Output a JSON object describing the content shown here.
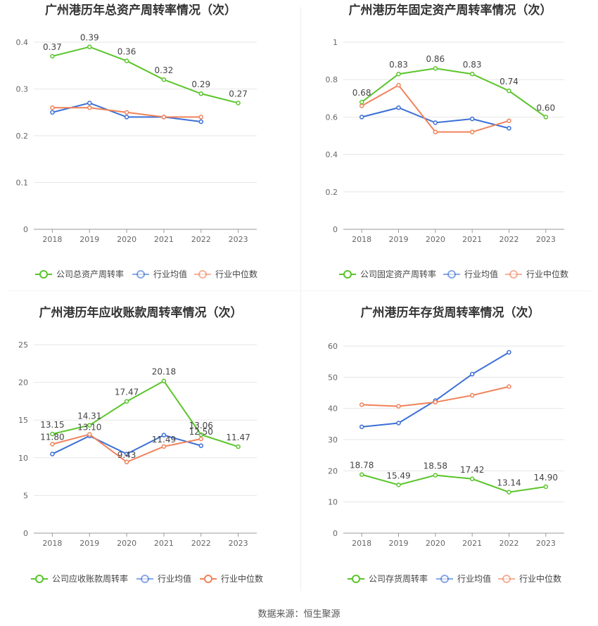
{
  "footer": {
    "source": "数据来源：恒生聚源"
  },
  "colors": {
    "company": "#5ac52a",
    "avg": "#3b6fd6",
    "median": "#f0825a",
    "grid": "#e6e6e6",
    "axis": "#999999"
  },
  "chart_data": [
    {
      "type": "line",
      "title": "广州港历年总资产周转率情况（次）",
      "categories": [
        "2018",
        "2019",
        "2020",
        "2021",
        "2022",
        "2023"
      ],
      "ylim": [
        0,
        0.4
      ],
      "yticks": [
        "0",
        "0.1",
        "0.2",
        "0.3",
        "0.4"
      ],
      "yticks_values": [
        0,
        0.1,
        0.2,
        0.3,
        0.4
      ],
      "series": [
        {
          "name": "公司总资产周转率",
          "values": [
            0.37,
            0.39,
            0.36,
            0.32,
            0.29,
            0.27
          ],
          "labels": [
            "0.37",
            "0.39",
            "0.36",
            "0.32",
            "0.29",
            "0.27"
          ]
        },
        {
          "name": "行业均值",
          "values": [
            0.25,
            0.27,
            0.24,
            0.24,
            0.23,
            null
          ]
        },
        {
          "name": "行业中位数",
          "values": [
            0.26,
            0.26,
            0.25,
            0.24,
            0.24,
            null
          ]
        }
      ]
    },
    {
      "type": "line",
      "title": "广州港历年固定资产周转率情况（次）",
      "categories": [
        "2018",
        "2019",
        "2020",
        "2021",
        "2022",
        "2023"
      ],
      "ylim": [
        0,
        1
      ],
      "yticks": [
        "0",
        "0.2",
        "0.4",
        "0.6",
        "0.8",
        "1"
      ],
      "yticks_values": [
        0,
        0.2,
        0.4,
        0.6,
        0.8,
        1
      ],
      "series": [
        {
          "name": "公司固定资产周转率",
          "values": [
            0.68,
            0.83,
            0.86,
            0.83,
            0.74,
            0.6
          ],
          "labels": [
            "0.68",
            "0.83",
            "0.86",
            "0.83",
            "0.74",
            "0.60"
          ]
        },
        {
          "name": "行业均值",
          "values": [
            0.6,
            0.65,
            0.57,
            0.59,
            0.54,
            null
          ]
        },
        {
          "name": "行业中位数",
          "values": [
            0.66,
            0.77,
            0.52,
            0.52,
            0.58,
            null
          ]
        }
      ]
    },
    {
      "type": "line",
      "title": "广州港历年应收账款周转率情况（次）",
      "categories": [
        "2018",
        "2019",
        "2020",
        "2021",
        "2022",
        "2023"
      ],
      "ylim": [
        0,
        25
      ],
      "yticks": [
        "0",
        "5",
        "10",
        "15",
        "20",
        "25"
      ],
      "yticks_values": [
        0,
        5,
        10,
        15,
        20,
        25
      ],
      "series": [
        {
          "name": "公司应收账款周转率",
          "values": [
            13.15,
            14.31,
            17.47,
            20.18,
            13.06,
            11.47
          ],
          "labels": [
            "13.15",
            "14.31",
            "17.47",
            "20.18",
            "13.06",
            "11.47"
          ]
        },
        {
          "name": "行业均值",
          "values": [
            10.5,
            12.9,
            10.5,
            13.0,
            11.6,
            null
          ]
        },
        {
          "name": "行业中位数",
          "values": [
            11.8,
            13.1,
            9.43,
            11.49,
            12.5,
            null
          ],
          "labels": [
            "11.80",
            "13.10",
            "9.43",
            "11.49",
            "12.50",
            ""
          ]
        }
      ]
    },
    {
      "type": "line",
      "title": "广州港历年存货周转率情况（次）",
      "categories": [
        "2018",
        "2019",
        "2020",
        "2021",
        "2022",
        "2023"
      ],
      "ylim": [
        0,
        60
      ],
      "yticks": [
        "0",
        "10",
        "20",
        "30",
        "40",
        "50",
        "60"
      ],
      "yticks_values": [
        0,
        10,
        20,
        30,
        40,
        50,
        60
      ],
      "series": [
        {
          "name": "公司存货周转率",
          "values": [
            18.78,
            15.49,
            18.58,
            17.42,
            13.14,
            14.9
          ],
          "labels": [
            "18.78",
            "15.49",
            "18.58",
            "17.42",
            "13.14",
            "14.90"
          ]
        },
        {
          "name": "行业均值",
          "values": [
            34.1,
            35.3,
            42.5,
            51.0,
            58.0,
            null
          ]
        },
        {
          "name": "行业中位数",
          "values": [
            41.2,
            40.7,
            42.0,
            44.2,
            47.0,
            null
          ]
        }
      ]
    }
  ]
}
